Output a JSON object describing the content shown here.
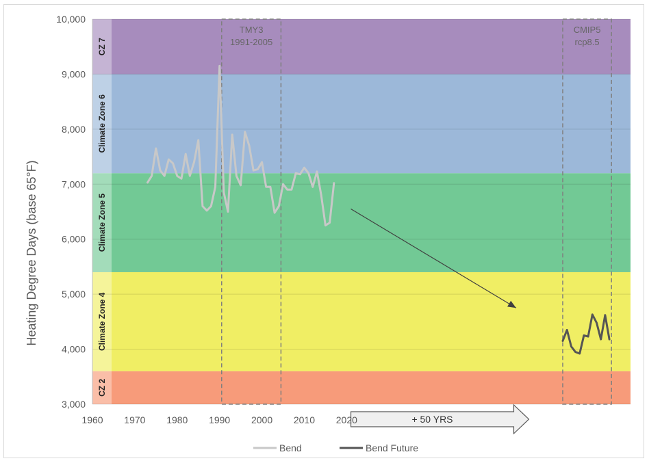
{
  "chart_data": {
    "type": "line",
    "ylabel": "Heating Degree Days (base 65°F)",
    "xlabel": "",
    "xlim": [
      1960,
      2087
    ],
    "ylim": [
      3000,
      10000
    ],
    "x_ticks": [
      "1960",
      "1970",
      "1980",
      "1990",
      "2000",
      "2010",
      "2020"
    ],
    "x_tick_values": [
      1960,
      1970,
      1980,
      1990,
      2000,
      2010,
      2020
    ],
    "y_ticks": [
      "3,000",
      "4,000",
      "5,000",
      "6,000",
      "7,000",
      "8,000",
      "9,000",
      "10,000"
    ],
    "y_tick_values": [
      3000,
      4000,
      5000,
      6000,
      7000,
      8000,
      9000,
      10000
    ],
    "zones": [
      {
        "label": "CZ 2",
        "from": 3000,
        "to": 3600,
        "color": "#f79b7a"
      },
      {
        "label": "Climate Zone 4",
        "from": 3600,
        "to": 5400,
        "color": "#f0ee64"
      },
      {
        "label": "Climate Zone 5",
        "from": 5400,
        "to": 7200,
        "color": "#72c995"
      },
      {
        "label": "Climate Zone 6",
        "from": 7200,
        "to": 9000,
        "color": "#9cb8d9"
      },
      {
        "label": "CZ 7",
        "from": 9000,
        "to": 10000,
        "color": "#a78cbd"
      }
    ],
    "boxes": [
      {
        "line1": "TMY3",
        "line2": "1991-2005",
        "x_from": 1990.5,
        "x_to": 2004.5
      },
      {
        "line1": "CMIP5",
        "line2": "rcp8.5",
        "x_from": 2071,
        "x_to": 2082.5
      }
    ],
    "series": [
      {
        "name": "Bend",
        "color": "#c8c8c8",
        "x": [
          1973,
          1974,
          1975,
          1976,
          1977,
          1978,
          1979,
          1980,
          1981,
          1982,
          1983,
          1984,
          1985,
          1986,
          1987,
          1988,
          1989,
          1990,
          1991,
          1992,
          1993,
          1994,
          1995,
          1996,
          1997,
          1998,
          1999,
          2000,
          2001,
          2002,
          2003,
          2004,
          2005,
          2006,
          2007,
          2008,
          2009,
          2010,
          2011,
          2012,
          2013,
          2014,
          2015,
          2016,
          2017
        ],
        "y": [
          7030,
          7150,
          7650,
          7250,
          7150,
          7450,
          7380,
          7150,
          7100,
          7550,
          7150,
          7400,
          7800,
          6600,
          6520,
          6600,
          6950,
          9150,
          6850,
          6500,
          7900,
          7150,
          6980,
          7950,
          7700,
          7250,
          7270,
          7400,
          6950,
          6950,
          6480,
          6600,
          7000,
          6900,
          6900,
          7200,
          7180,
          7300,
          7200,
          6950,
          7230,
          6800,
          6250,
          6300,
          7020
        ]
      },
      {
        "name": "Bend Future",
        "color": "#555555",
        "x": [
          2071,
          2072,
          2073,
          2074,
          2075,
          2076,
          2077,
          2078,
          2079,
          2080,
          2081,
          2082
        ],
        "y": [
          4150,
          4350,
          4050,
          3950,
          3920,
          4250,
          4230,
          4630,
          4480,
          4180,
          4620,
          4180
        ]
      }
    ],
    "trend_arrow": {
      "x_from": 2021,
      "y_from": 6550,
      "x_to": 2060,
      "y_to": 4750
    },
    "block_arrow": {
      "label": "+ 50 YRS",
      "x_from": 2021,
      "x_to": 2063
    },
    "legend": {
      "position": "bottom-center",
      "entries": [
        "Bend",
        "Bend Future"
      ]
    },
    "grid": true
  }
}
